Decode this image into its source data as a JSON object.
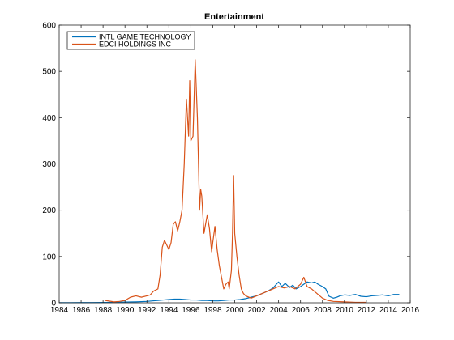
{
  "chart_data": {
    "type": "line",
    "title": "Entertainment",
    "xlabel": "",
    "ylabel": "",
    "xlim": [
      1984,
      2016
    ],
    "ylim": [
      0,
      600
    ],
    "xticks": [
      1984,
      1986,
      1988,
      1990,
      1992,
      1994,
      1996,
      1998,
      2000,
      2002,
      2004,
      2006,
      2008,
      2010,
      2012,
      2014,
      2016
    ],
    "yticks": [
      0,
      100,
      200,
      300,
      400,
      500,
      600
    ],
    "grid": false,
    "legend_placement": "top-left",
    "series": [
      {
        "name": "INTL GAME TECHNOLOGY",
        "color": "#0072BD",
        "points": [
          [
            1984.0,
            0.3
          ],
          [
            1985.0,
            0.3
          ],
          [
            1986.0,
            0.4
          ],
          [
            1987.0,
            0.5
          ],
          [
            1988.0,
            0.8
          ],
          [
            1989.0,
            1.0
          ],
          [
            1990.0,
            1.5
          ],
          [
            1991.0,
            2.0
          ],
          [
            1992.0,
            3.0
          ],
          [
            1992.5,
            4.0
          ],
          [
            1993.0,
            5.0
          ],
          [
            1993.5,
            6.0
          ],
          [
            1994.0,
            7.0
          ],
          [
            1994.5,
            8.0
          ],
          [
            1995.0,
            8.0
          ],
          [
            1995.5,
            7.0
          ],
          [
            1996.0,
            6.0
          ],
          [
            1996.5,
            6.0
          ],
          [
            1997.0,
            5.0
          ],
          [
            1997.5,
            5.0
          ],
          [
            1998.0,
            4.0
          ],
          [
            1998.5,
            4.0
          ],
          [
            1999.0,
            5.0
          ],
          [
            1999.5,
            6.0
          ],
          [
            2000.0,
            6.0
          ],
          [
            2000.5,
            7.0
          ],
          [
            2001.0,
            9.0
          ],
          [
            2001.5,
            12.0
          ],
          [
            2002.0,
            15.0
          ],
          [
            2002.5,
            20.0
          ],
          [
            2003.0,
            25.0
          ],
          [
            2003.5,
            32.0
          ],
          [
            2003.8,
            40.0
          ],
          [
            2004.0,
            45.0
          ],
          [
            2004.3,
            35.0
          ],
          [
            2004.6,
            42.0
          ],
          [
            2005.0,
            33.0
          ],
          [
            2005.3,
            38.0
          ],
          [
            2005.6,
            30.0
          ],
          [
            2006.0,
            35.0
          ],
          [
            2006.3,
            40.0
          ],
          [
            2006.6,
            45.0
          ],
          [
            2007.0,
            43.0
          ],
          [
            2007.3,
            45.0
          ],
          [
            2007.6,
            40.0
          ],
          [
            2008.0,
            35.0
          ],
          [
            2008.3,
            30.0
          ],
          [
            2008.6,
            14.0
          ],
          [
            2009.0,
            10.0
          ],
          [
            2009.3,
            12.0
          ],
          [
            2009.6,
            15.0
          ],
          [
            2010.0,
            17.0
          ],
          [
            2010.5,
            16.0
          ],
          [
            2011.0,
            18.0
          ],
          [
            2011.5,
            14.0
          ],
          [
            2012.0,
            13.0
          ],
          [
            2012.5,
            15.0
          ],
          [
            2013.0,
            16.0
          ],
          [
            2013.5,
            17.0
          ],
          [
            2014.0,
            15.0
          ],
          [
            2014.5,
            18.0
          ],
          [
            2015.0,
            18.0
          ]
        ]
      },
      {
        "name": "EDCI HOLDINGS INC",
        "color": "#D95319",
        "points": [
          [
            1988.2,
            5.0
          ],
          [
            1989.0,
            2.0
          ],
          [
            1989.5,
            3.0
          ],
          [
            1990.0,
            5.0
          ],
          [
            1990.5,
            12.0
          ],
          [
            1991.0,
            15.0
          ],
          [
            1991.5,
            12.0
          ],
          [
            1992.0,
            15.0
          ],
          [
            1992.3,
            17.0
          ],
          [
            1992.6,
            25.0
          ],
          [
            1993.0,
            30.0
          ],
          [
            1993.2,
            60.0
          ],
          [
            1993.4,
            120.0
          ],
          [
            1993.6,
            135.0
          ],
          [
            1993.8,
            125.0
          ],
          [
            1994.0,
            115.0
          ],
          [
            1994.2,
            130.0
          ],
          [
            1994.4,
            170.0
          ],
          [
            1994.6,
            175.0
          ],
          [
            1994.8,
            155.0
          ],
          [
            1995.0,
            175.0
          ],
          [
            1995.2,
            200.0
          ],
          [
            1995.4,
            300.0
          ],
          [
            1995.6,
            440.0
          ],
          [
            1995.8,
            360.0
          ],
          [
            1995.9,
            480.0
          ],
          [
            1996.0,
            350.0
          ],
          [
            1996.2,
            360.0
          ],
          [
            1996.4,
            525.0
          ],
          [
            1996.6,
            400.0
          ],
          [
            1996.8,
            200.0
          ],
          [
            1996.9,
            245.0
          ],
          [
            1997.0,
            230.0
          ],
          [
            1997.2,
            150.0
          ],
          [
            1997.5,
            190.0
          ],
          [
            1997.7,
            160.0
          ],
          [
            1997.9,
            110.0
          ],
          [
            1998.0,
            130.0
          ],
          [
            1998.2,
            165.0
          ],
          [
            1998.4,
            115.0
          ],
          [
            1998.6,
            80.0
          ],
          [
            1998.8,
            55.0
          ],
          [
            1999.0,
            30.0
          ],
          [
            1999.2,
            40.0
          ],
          [
            1999.4,
            45.0
          ],
          [
            1999.5,
            30.0
          ],
          [
            1999.7,
            70.0
          ],
          [
            1999.8,
            150.0
          ],
          [
            1999.9,
            275.0
          ],
          [
            2000.0,
            150.0
          ],
          [
            2000.2,
            100.0
          ],
          [
            2000.4,
            60.0
          ],
          [
            2000.6,
            30.0
          ],
          [
            2000.8,
            20.0
          ],
          [
            2001.0,
            15.0
          ],
          [
            2001.5,
            10.0
          ],
          [
            2002.0,
            15.0
          ],
          [
            2002.5,
            20.0
          ],
          [
            2003.0,
            25.0
          ],
          [
            2003.5,
            30.0
          ],
          [
            2004.0,
            35.0
          ],
          [
            2004.5,
            32.0
          ],
          [
            2005.0,
            35.0
          ],
          [
            2005.5,
            30.0
          ],
          [
            2006.0,
            40.0
          ],
          [
            2006.3,
            55.0
          ],
          [
            2006.6,
            35.0
          ],
          [
            2007.0,
            30.0
          ],
          [
            2007.5,
            20.0
          ],
          [
            2008.0,
            10.0
          ],
          [
            2008.5,
            5.0
          ],
          [
            2009.0,
            3.0
          ],
          [
            2010.0,
            2.0
          ],
          [
            2011.0,
            1.0
          ],
          [
            2012.0,
            1.0
          ]
        ]
      }
    ]
  }
}
